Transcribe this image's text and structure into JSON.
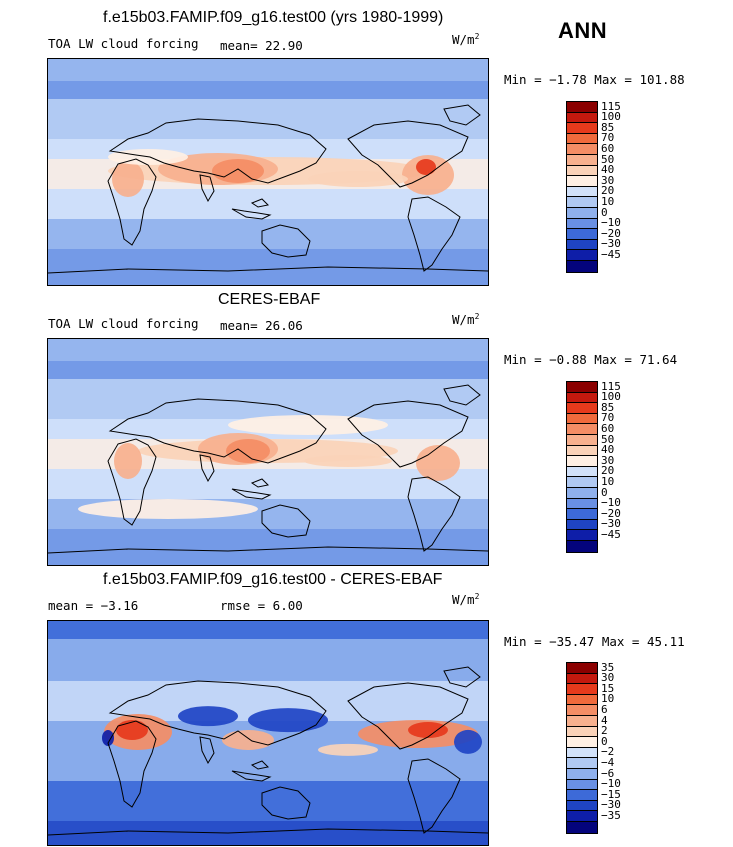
{
  "season": "ANN",
  "panels": [
    {
      "id": "model",
      "title": "f.e15b03.FAMIP.f09_g16.test00 (yrs 1980-1999)",
      "left_label": "TOA LW cloud forcing",
      "mid_label": "mean=  22.90",
      "unit": "W/m",
      "unit_sup": "2",
      "minmax": "Min =  −1.78 Max = 101.88",
      "levels": [
        "115",
        "100",
        "85",
        "70",
        "60",
        "50",
        "40",
        "30",
        "20",
        "10",
        "0",
        "−10",
        "−20",
        "−30",
        "−45"
      ],
      "colors": [
        "#8b0000",
        "#c4190e",
        "#e63a1c",
        "#f06a3c",
        "#f48d65",
        "#f7b08e",
        "#fad2b8",
        "#fff0e4",
        "#d2e2fa",
        "#b0c9f2",
        "#8fb0ec",
        "#6990e4",
        "#3d6ad8",
        "#1f44c4",
        "#0e1ea8",
        "#04047c"
      ],
      "map_style": "model"
    },
    {
      "id": "obs",
      "title": "CERES-EBAF",
      "left_label": "TOA LW cloud forcing",
      "mid_label": "mean=  26.06",
      "unit": "W/m",
      "unit_sup": "2",
      "minmax": "Min =  −0.88 Max =  71.64",
      "levels": [
        "115",
        "100",
        "85",
        "70",
        "60",
        "50",
        "40",
        "30",
        "20",
        "10",
        "0",
        "−10",
        "−20",
        "−30",
        "−45"
      ],
      "colors": [
        "#8b0000",
        "#c4190e",
        "#e63a1c",
        "#f06a3c",
        "#f48d65",
        "#f7b08e",
        "#fad2b8",
        "#fff0e4",
        "#d2e2fa",
        "#b0c9f2",
        "#8fb0ec",
        "#6990e4",
        "#3d6ad8",
        "#1f44c4",
        "#0e1ea8",
        "#04047c"
      ],
      "map_style": "obs"
    },
    {
      "id": "diff",
      "title": "f.e15b03.FAMIP.f09_g16.test00 - CERES-EBAF",
      "left_label": "mean =  −3.16",
      "mid_label": "rmse =   6.00",
      "unit": "W/m",
      "unit_sup": "2",
      "minmax": "Min = −35.47 Max =  45.11",
      "levels": [
        "35",
        "30",
        "15",
        "10",
        "6",
        "4",
        "2",
        "0",
        "−2",
        "−4",
        "−6",
        "−10",
        "−15",
        "−30",
        "−35"
      ],
      "colors": [
        "#8b0000",
        "#c4190e",
        "#e63a1c",
        "#f06a3c",
        "#f48d65",
        "#f7b08e",
        "#fad2b8",
        "#fff0e4",
        "#d2e2fa",
        "#b0c9f2",
        "#8fb0ec",
        "#6990e4",
        "#3d6ad8",
        "#1f44c4",
        "#0e1ea8",
        "#04047c"
      ],
      "map_style": "diff"
    }
  ]
}
